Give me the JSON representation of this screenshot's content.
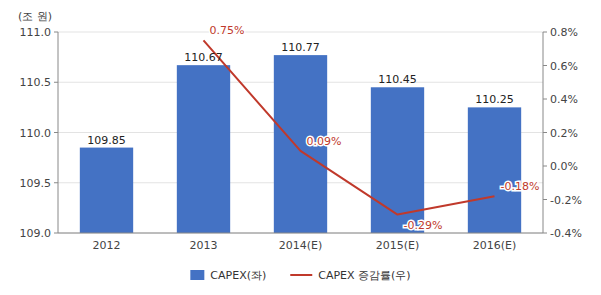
{
  "chart_data": {
    "type": "bar",
    "ylabel": "(조 원)",
    "categories": [
      "2012",
      "2013",
      "2014(E)",
      "2015(E)",
      "2016(E)"
    ],
    "series": [
      {
        "name": "CAPEX(좌)",
        "type": "bar",
        "color": "#4472C4",
        "values": [
          109.85,
          110.67,
          110.77,
          110.45,
          110.25
        ]
      },
      {
        "name": "CAPEX 증감률(우)",
        "type": "line",
        "axis": "y2",
        "color": "#C0392B",
        "values": [
          null,
          0.75,
          0.09,
          -0.29,
          -0.18
        ],
        "value_labels": [
          null,
          "0.75%",
          "0.09%",
          "-0.29%",
          "-0.18%"
        ]
      }
    ],
    "ylim": [
      109.0,
      111.0
    ],
    "yticks": [
      {
        "value": 109.0,
        "label": "109.0"
      },
      {
        "value": 109.5,
        "label": "109.5"
      },
      {
        "value": 110.0,
        "label": "110.0"
      },
      {
        "value": 110.5,
        "label": "110.5"
      },
      {
        "value": 111.0,
        "label": "111.0"
      }
    ],
    "y2lim": [
      -0.4,
      0.8
    ],
    "y2ticks": [
      {
        "value": -0.4,
        "label": "-0.4%"
      },
      {
        "value": -0.2,
        "label": "-0.2%"
      },
      {
        "value": 0.0,
        "label": "0.0%"
      },
      {
        "value": 0.2,
        "label": "0.2%"
      },
      {
        "value": 0.4,
        "label": "0.4%"
      },
      {
        "value": 0.6,
        "label": "0.6%"
      },
      {
        "value": 0.8,
        "label": "0.8%"
      }
    ],
    "grid": true,
    "legend": "bottom",
    "data_labels": true
  }
}
